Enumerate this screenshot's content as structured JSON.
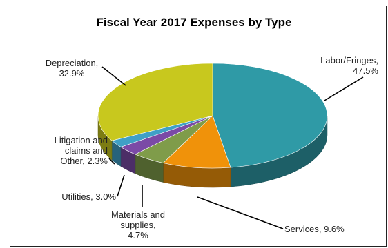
{
  "chart_data": {
    "type": "pie",
    "title": "Fiscal Year 2017 Expenses by Type",
    "slices": [
      {
        "name": "Labor/Fringes",
        "value": 47.5,
        "label_lines": [
          "Labor/Fringes,",
          "47.5%"
        ],
        "color": "#2f9aa6"
      },
      {
        "name": "Services",
        "value": 9.6,
        "label_lines": [
          "Services, 9.6%"
        ],
        "color": "#f0920a"
      },
      {
        "name": "Materials and supplies",
        "value": 4.7,
        "label_lines": [
          "Materials and",
          "supplies,",
          "4.7%"
        ],
        "color": "#7f9c4a"
      },
      {
        "name": "Utilities",
        "value": 3.0,
        "label_lines": [
          "Utilities, 3.0%"
        ],
        "color": "#7b4aa6"
      },
      {
        "name": "Litigation and claims and Other",
        "value": 2.3,
        "label_lines": [
          "Litigation and",
          "claims and",
          "Other, 2.3%"
        ],
        "color": "#3fa0c6"
      },
      {
        "name": "Depreciation",
        "value": 32.9,
        "label_lines": [
          "Depreciation,",
          "32.9%"
        ],
        "color": "#c8c81e"
      }
    ]
  }
}
